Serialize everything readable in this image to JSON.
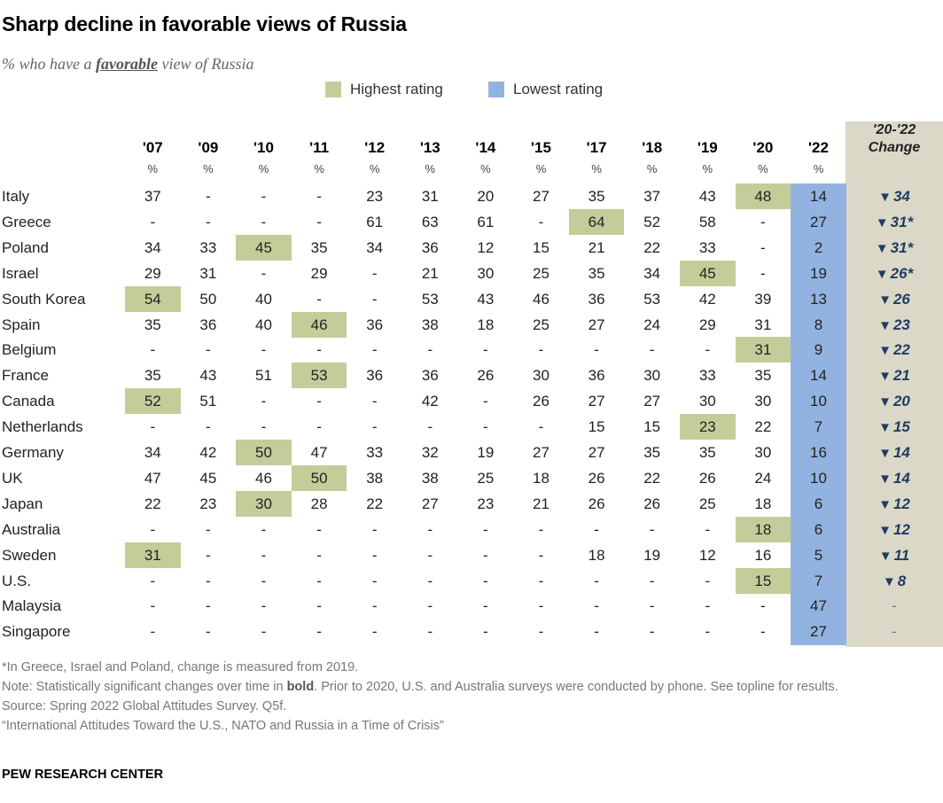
{
  "title": "Sharp decline in favorable views of Russia",
  "subtitle": {
    "prefix": "% who have a ",
    "emphasis": "favorable",
    "suffix": " view of Russia"
  },
  "legend": {
    "highest": "Highest rating",
    "lowest": "Lowest rating"
  },
  "colors": {
    "highest": "#c3cd9a",
    "lowest": "#92b3e0",
    "change_bg": "#dcd8c8",
    "arrow": "#1f3d63"
  },
  "change_header": [
    "'20-'22",
    "Change"
  ],
  "pct_symbol": "%",
  "chart_data": {
    "type": "table",
    "years": [
      "'07",
      "'09",
      "'10",
      "'11",
      "'12",
      "'13",
      "'14",
      "'15",
      "'17",
      "'18",
      "'19",
      "'20",
      "'22"
    ],
    "rows": [
      {
        "country": "Italy",
        "values": [
          "37",
          "-",
          "-",
          "-",
          "23",
          "31",
          "20",
          "27",
          "35",
          "37",
          "43",
          "48",
          "14"
        ],
        "highest": 11,
        "change": "34",
        "asterisk": false
      },
      {
        "country": "Greece",
        "values": [
          "-",
          "-",
          "-",
          "-",
          "61",
          "63",
          "61",
          "-",
          "64",
          "52",
          "58",
          "-",
          "27"
        ],
        "highest": 8,
        "change": "31",
        "asterisk": true
      },
      {
        "country": "Poland",
        "values": [
          "34",
          "33",
          "45",
          "35",
          "34",
          "36",
          "12",
          "15",
          "21",
          "22",
          "33",
          "-",
          "2"
        ],
        "highest": 2,
        "change": "31",
        "asterisk": true
      },
      {
        "country": "Israel",
        "values": [
          "29",
          "31",
          "-",
          "29",
          "-",
          "21",
          "30",
          "25",
          "35",
          "34",
          "45",
          "-",
          "19"
        ],
        "highest": 10,
        "change": "26",
        "asterisk": true
      },
      {
        "country": "South Korea",
        "values": [
          "54",
          "50",
          "40",
          "-",
          "-",
          "53",
          "43",
          "46",
          "36",
          "53",
          "42",
          "39",
          "13"
        ],
        "highest": 0,
        "change": "26",
        "asterisk": false
      },
      {
        "country": "Spain",
        "values": [
          "35",
          "36",
          "40",
          "46",
          "36",
          "38",
          "18",
          "25",
          "27",
          "24",
          "29",
          "31",
          "8"
        ],
        "highest": 3,
        "change": "23",
        "asterisk": false
      },
      {
        "country": "Belgium",
        "values": [
          "-",
          "-",
          "-",
          "-",
          "-",
          "-",
          "-",
          "-",
          "-",
          "-",
          "-",
          "31",
          "9"
        ],
        "highest": 11,
        "change": "22",
        "asterisk": false
      },
      {
        "country": "France",
        "values": [
          "35",
          "43",
          "51",
          "53",
          "36",
          "36",
          "26",
          "30",
          "36",
          "30",
          "33",
          "35",
          "14"
        ],
        "highest": 3,
        "change": "21",
        "asterisk": false
      },
      {
        "country": "Canada",
        "values": [
          "52",
          "51",
          "-",
          "-",
          "-",
          "42",
          "-",
          "26",
          "27",
          "27",
          "30",
          "30",
          "10"
        ],
        "highest": 0,
        "change": "20",
        "asterisk": false
      },
      {
        "country": "Netherlands",
        "values": [
          "-",
          "-",
          "-",
          "-",
          "-",
          "-",
          "-",
          "-",
          "15",
          "15",
          "23",
          "22",
          "7"
        ],
        "highest": 10,
        "change": "15",
        "asterisk": false
      },
      {
        "country": "Germany",
        "values": [
          "34",
          "42",
          "50",
          "47",
          "33",
          "32",
          "19",
          "27",
          "27",
          "35",
          "35",
          "30",
          "16"
        ],
        "highest": 2,
        "change": "14",
        "asterisk": false
      },
      {
        "country": "UK",
        "values": [
          "47",
          "45",
          "46",
          "50",
          "38",
          "38",
          "25",
          "18",
          "26",
          "22",
          "26",
          "24",
          "10"
        ],
        "highest": 3,
        "change": "14",
        "asterisk": false
      },
      {
        "country": "Japan",
        "values": [
          "22",
          "23",
          "30",
          "28",
          "22",
          "27",
          "23",
          "21",
          "26",
          "26",
          "25",
          "18",
          "6"
        ],
        "highest": 2,
        "change": "12",
        "asterisk": false
      },
      {
        "country": "Australia",
        "values": [
          "-",
          "-",
          "-",
          "-",
          "-",
          "-",
          "-",
          "-",
          "-",
          "-",
          "-",
          "18",
          "6"
        ],
        "highest": 11,
        "change": "12",
        "asterisk": false
      },
      {
        "country": "Sweden",
        "values": [
          "31",
          "-",
          "-",
          "-",
          "-",
          "-",
          "-",
          "-",
          "18",
          "19",
          "12",
          "16",
          "5"
        ],
        "highest": 0,
        "change": "11",
        "asterisk": false
      },
      {
        "country": "U.S.",
        "values": [
          "-",
          "-",
          "-",
          "-",
          "-",
          "-",
          "-",
          "-",
          "-",
          "-",
          "-",
          "15",
          "7"
        ],
        "highest": 11,
        "change": "8",
        "asterisk": false
      },
      {
        "country": "Malaysia",
        "values": [
          "-",
          "-",
          "-",
          "-",
          "-",
          "-",
          "-",
          "-",
          "-",
          "-",
          "-",
          "-",
          "47"
        ],
        "highest": null,
        "change": "-",
        "asterisk": false
      },
      {
        "country": "Singapore",
        "values": [
          "-",
          "-",
          "-",
          "-",
          "-",
          "-",
          "-",
          "-",
          "-",
          "-",
          "-",
          "-",
          "27"
        ],
        "highest": null,
        "change": "-",
        "asterisk": false
      }
    ],
    "lowest_column": 12
  },
  "notes": {
    "asterisk": "*In Greece, Israel and Poland, change is measured from 2019.",
    "note_prefix": "Note: Statistically significant changes over time in ",
    "note_bold": "bold",
    "note_suffix": ". Prior to 2020, U.S. and Australia surveys were conducted by phone. See topline for results.",
    "source": "Source: Spring 2022 Global Attitudes Survey. Q5f.",
    "report": "“International Attitudes Toward the U.S., NATO and Russia in a Time of Crisis”"
  },
  "organization": "PEW RESEARCH CENTER"
}
